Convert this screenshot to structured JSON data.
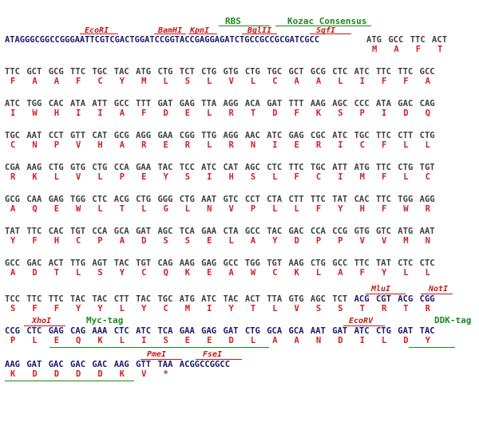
{
  "colors": {
    "dna_default": "#404040",
    "dna_vector": "#1a1a6e",
    "dna_insert": "#1a1a6e",
    "aa_default": "#d42020",
    "aa_tag": "#1a1a8a",
    "site": "#c01a1a",
    "feature": "#1a8a1a"
  },
  "header": {
    "dna": "ATAGGGCGGCCGGGAATTCGTCGACTGGATCCGGTACCGAGGAGATCTGCCGCCGCGATCGCC",
    "start_codons": [
      "ATG",
      "GCC",
      "TTC",
      "ACT"
    ],
    "aa": [
      "M",
      "A",
      "F",
      "T"
    ],
    "sites": [
      {
        "label": "EcoRI"
      },
      {
        "label": "BamHI"
      },
      {
        "label": "KpnI"
      },
      {
        "label": "BglII"
      },
      {
        "label": "SgfI"
      }
    ],
    "features": [
      {
        "label": "RBS"
      },
      {
        "label": "Kozac Consensus"
      }
    ]
  },
  "rows": [
    {
      "codons": [
        "TTC",
        "GCT",
        "GCG",
        "TTC",
        "TGC",
        "TAC",
        "ATG",
        "CTG",
        "TCT",
        "CTG",
        "GTG",
        "CTG",
        "TGC",
        "GCT",
        "GCG",
        "CTC",
        "ATC",
        "TTC",
        "TTC",
        "GCC"
      ],
      "aa": [
        "F",
        "A",
        "A",
        "F",
        "C",
        "Y",
        "M",
        "L",
        "S",
        "L",
        "V",
        "L",
        "C",
        "A",
        "A",
        "L",
        "I",
        "F",
        "F",
        "A"
      ]
    },
    {
      "codons": [
        "ATC",
        "TGG",
        "CAC",
        "ATA",
        "ATT",
        "GCC",
        "TTT",
        "GAT",
        "GAG",
        "TTA",
        "AGG",
        "ACA",
        "GAT",
        "TTT",
        "AAG",
        "AGC",
        "CCC",
        "ATA",
        "GAC",
        "CAG"
      ],
      "aa": [
        "I",
        "W",
        "H",
        "I",
        "I",
        "A",
        "F",
        "D",
        "E",
        "L",
        "R",
        "T",
        "D",
        "F",
        "K",
        "S",
        "P",
        "I",
        "D",
        "Q"
      ]
    },
    {
      "codons": [
        "TGC",
        "AAT",
        "CCT",
        "GTT",
        "CAT",
        "GCG",
        "AGG",
        "GAA",
        "CGG",
        "TTG",
        "AGG",
        "AAC",
        "ATC",
        "GAG",
        "CGC",
        "ATC",
        "TGC",
        "TTC",
        "CTT",
        "CTG"
      ],
      "aa": [
        "C",
        "N",
        "P",
        "V",
        "H",
        "A",
        "R",
        "E",
        "R",
        "L",
        "R",
        "N",
        "I",
        "E",
        "R",
        "I",
        "C",
        "F",
        "L",
        "L"
      ]
    },
    {
      "codons": [
        "CGA",
        "AAG",
        "CTG",
        "GTG",
        "CTG",
        "CCA",
        "GAA",
        "TAC",
        "TCC",
        "ATC",
        "CAT",
        "AGC",
        "CTC",
        "TTC",
        "TGC",
        "ATT",
        "ATG",
        "TTC",
        "CTG",
        "TGT"
      ],
      "aa": [
        "R",
        "K",
        "L",
        "V",
        "L",
        "P",
        "E",
        "Y",
        "S",
        "I",
        "H",
        "S",
        "L",
        "F",
        "C",
        "I",
        "M",
        "F",
        "L",
        "C"
      ]
    },
    {
      "codons": [
        "GCG",
        "CAA",
        "GAG",
        "TGG",
        "CTC",
        "ACG",
        "CTG",
        "GGG",
        "CTG",
        "AAT",
        "GTC",
        "CCT",
        "CTA",
        "CTT",
        "TTC",
        "TAT",
        "CAC",
        "TTC",
        "TGG",
        "AGG"
      ],
      "aa": [
        "A",
        "Q",
        "E",
        "W",
        "L",
        "T",
        "L",
        "G",
        "L",
        "N",
        "V",
        "P",
        "L",
        "L",
        "F",
        "Y",
        "H",
        "F",
        "W",
        "R"
      ]
    },
    {
      "codons": [
        "TAT",
        "TTC",
        "CAC",
        "TGT",
        "CCA",
        "GCA",
        "GAT",
        "AGC",
        "TCA",
        "GAA",
        "CTA",
        "GCC",
        "TAC",
        "GAC",
        "CCA",
        "CCG",
        "GTG",
        "GTC",
        "ATG",
        "AAT"
      ],
      "aa": [
        "Y",
        "F",
        "H",
        "C",
        "P",
        "A",
        "D",
        "S",
        "S",
        "E",
        "L",
        "A",
        "Y",
        "D",
        "P",
        "P",
        "V",
        "V",
        "M",
        "N"
      ]
    },
    {
      "codons": [
        "GCC",
        "GAC",
        "ACT",
        "TTG",
        "AGT",
        "TAC",
        "TGT",
        "CAG",
        "AAG",
        "GAG",
        "GCC",
        "TGG",
        "TGT",
        "AAG",
        "CTG",
        "GCC",
        "TTC",
        "TAT",
        "CTC",
        "CTC"
      ],
      "aa": [
        "A",
        "D",
        "T",
        "L",
        "S",
        "Y",
        "C",
        "Q",
        "K",
        "E",
        "A",
        "W",
        "C",
        "K",
        "L",
        "A",
        "F",
        "Y",
        "L",
        "L"
      ]
    },
    {
      "codons": [
        "TCC",
        "TTC",
        "TTC",
        "TAC",
        "TAC",
        "CTT",
        "TAC",
        "TGC",
        "ATG",
        "ATC",
        "TAC",
        "ACT",
        "TTA",
        "GTG",
        "AGC",
        "TCT",
        "ACG",
        "CGT",
        "ACG",
        "CGG"
      ],
      "aa": [
        "S",
        "F",
        "F",
        "Y",
        "Y",
        "L",
        "Y",
        "C",
        "M",
        "I",
        "Y",
        "T",
        "L",
        "V",
        "S",
        "S",
        "T",
        "R",
        "T",
        "R"
      ],
      "sites": [
        {
          "label": "MluI"
        },
        {
          "label": "NotI"
        }
      ]
    },
    {
      "codons": [
        "CCG",
        "CTC",
        "GAG",
        "CAG",
        "AAA",
        "CTC",
        "ATC",
        "TCA",
        "GAA",
        "GAG",
        "GAT",
        "CTG",
        "GCA",
        "GCA",
        "AAT",
        "GAT",
        "ATC",
        "CTG",
        "GAT",
        "TAC"
      ],
      "aa": [
        "P",
        "L",
        "E",
        "Q",
        "K",
        "L",
        "I",
        "S",
        "E",
        "E",
        "D",
        "L",
        "A",
        "A",
        "N",
        "D",
        "I",
        "L",
        "D",
        "Y"
      ],
      "sites": [
        {
          "label": "XhoI"
        },
        {
          "label": "EcoRV"
        }
      ],
      "features": [
        {
          "label": "Myc-tag"
        },
        {
          "label": "DDK-tag"
        }
      ]
    },
    {
      "codons": [
        "AAG",
        "GAT",
        "GAC",
        "GAC",
        "GAC",
        "AAG",
        "GTT",
        "TAA"
      ],
      "tail": "ACGGCCGGCC",
      "aa": [
        "K",
        "D",
        "D",
        "D",
        "D",
        "K",
        "V",
        "*"
      ],
      "sites": [
        {
          "label": "PmeI"
        },
        {
          "label": "FseI"
        }
      ]
    }
  ]
}
